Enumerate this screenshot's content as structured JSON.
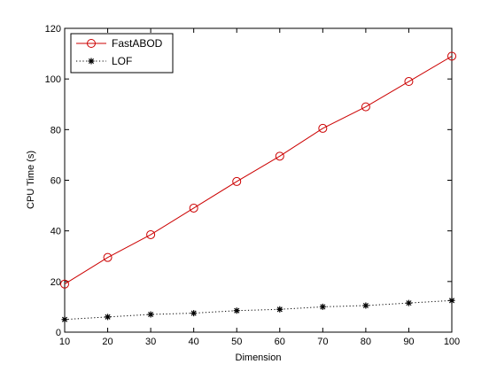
{
  "chart_data": {
    "type": "line",
    "xlabel": "Dimension",
    "ylabel": "CPU Time (s)",
    "xlim": [
      10,
      100
    ],
    "ylim": [
      0,
      120
    ],
    "xticks": [
      10,
      20,
      30,
      40,
      50,
      60,
      70,
      80,
      90,
      100
    ],
    "yticks": [
      0,
      20,
      40,
      60,
      80,
      100,
      120
    ],
    "grid": false,
    "legend_position": "top-left",
    "x": [
      10,
      20,
      30,
      40,
      50,
      60,
      70,
      80,
      90,
      100
    ],
    "series": [
      {
        "name": "FastABOD",
        "values": [
          19,
          29.5,
          38.5,
          49,
          59.5,
          69.5,
          80.5,
          89,
          99,
          109
        ],
        "color": "#cc0000",
        "line_style": "solid",
        "marker": "circle"
      },
      {
        "name": "LOF",
        "values": [
          5,
          6,
          7,
          7.5,
          8.5,
          9,
          10,
          10.5,
          11.5,
          12.5
        ],
        "color": "#000000",
        "line_style": "dotted",
        "marker": "asterisk"
      }
    ]
  }
}
